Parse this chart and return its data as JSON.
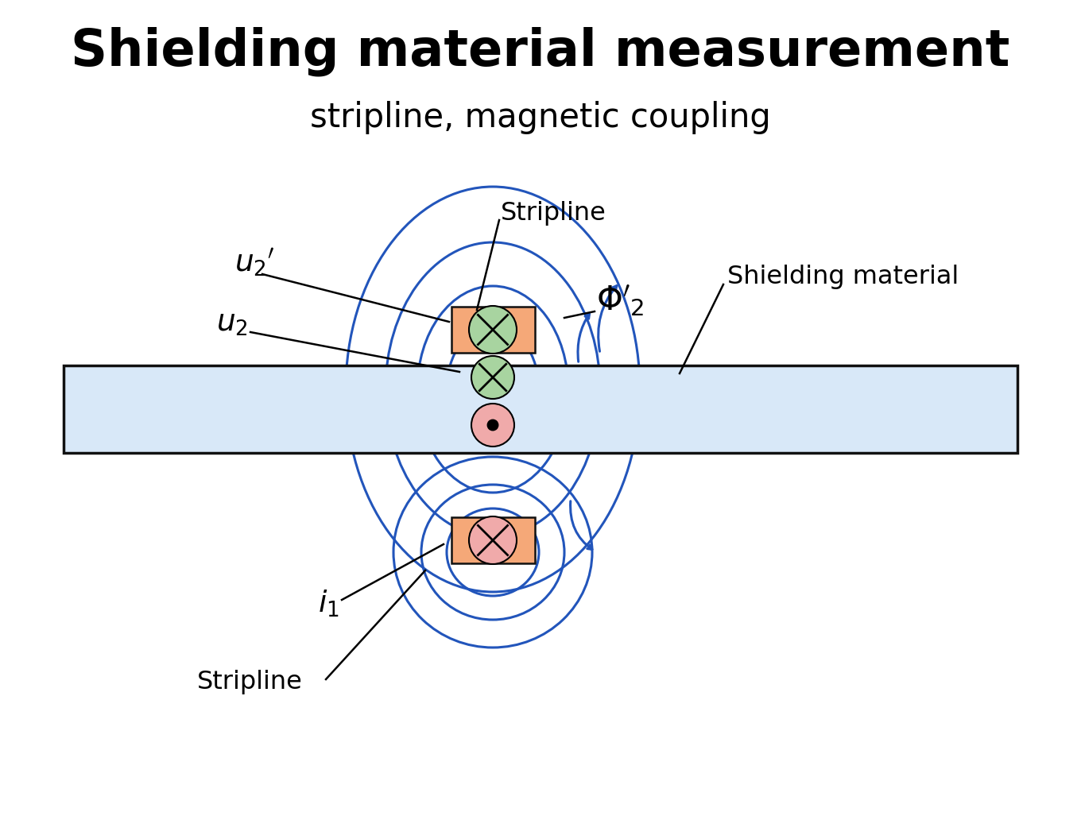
{
  "title": "Shielding material measurement",
  "subtitle": "stripline, magnetic coupling",
  "title_fontsize": 46,
  "subtitle_fontsize": 30,
  "bg_color": "#ffffff",
  "blue_color": "#2255bb",
  "strip_facecolor": "#f5a878",
  "strip_edgecolor": "#111111",
  "cross_color_green": "#a8d4a0",
  "cross_color_pink": "#f0aaaa",
  "shield_facecolor": "#d8e8f8",
  "shield_edgecolor": "#111111"
}
